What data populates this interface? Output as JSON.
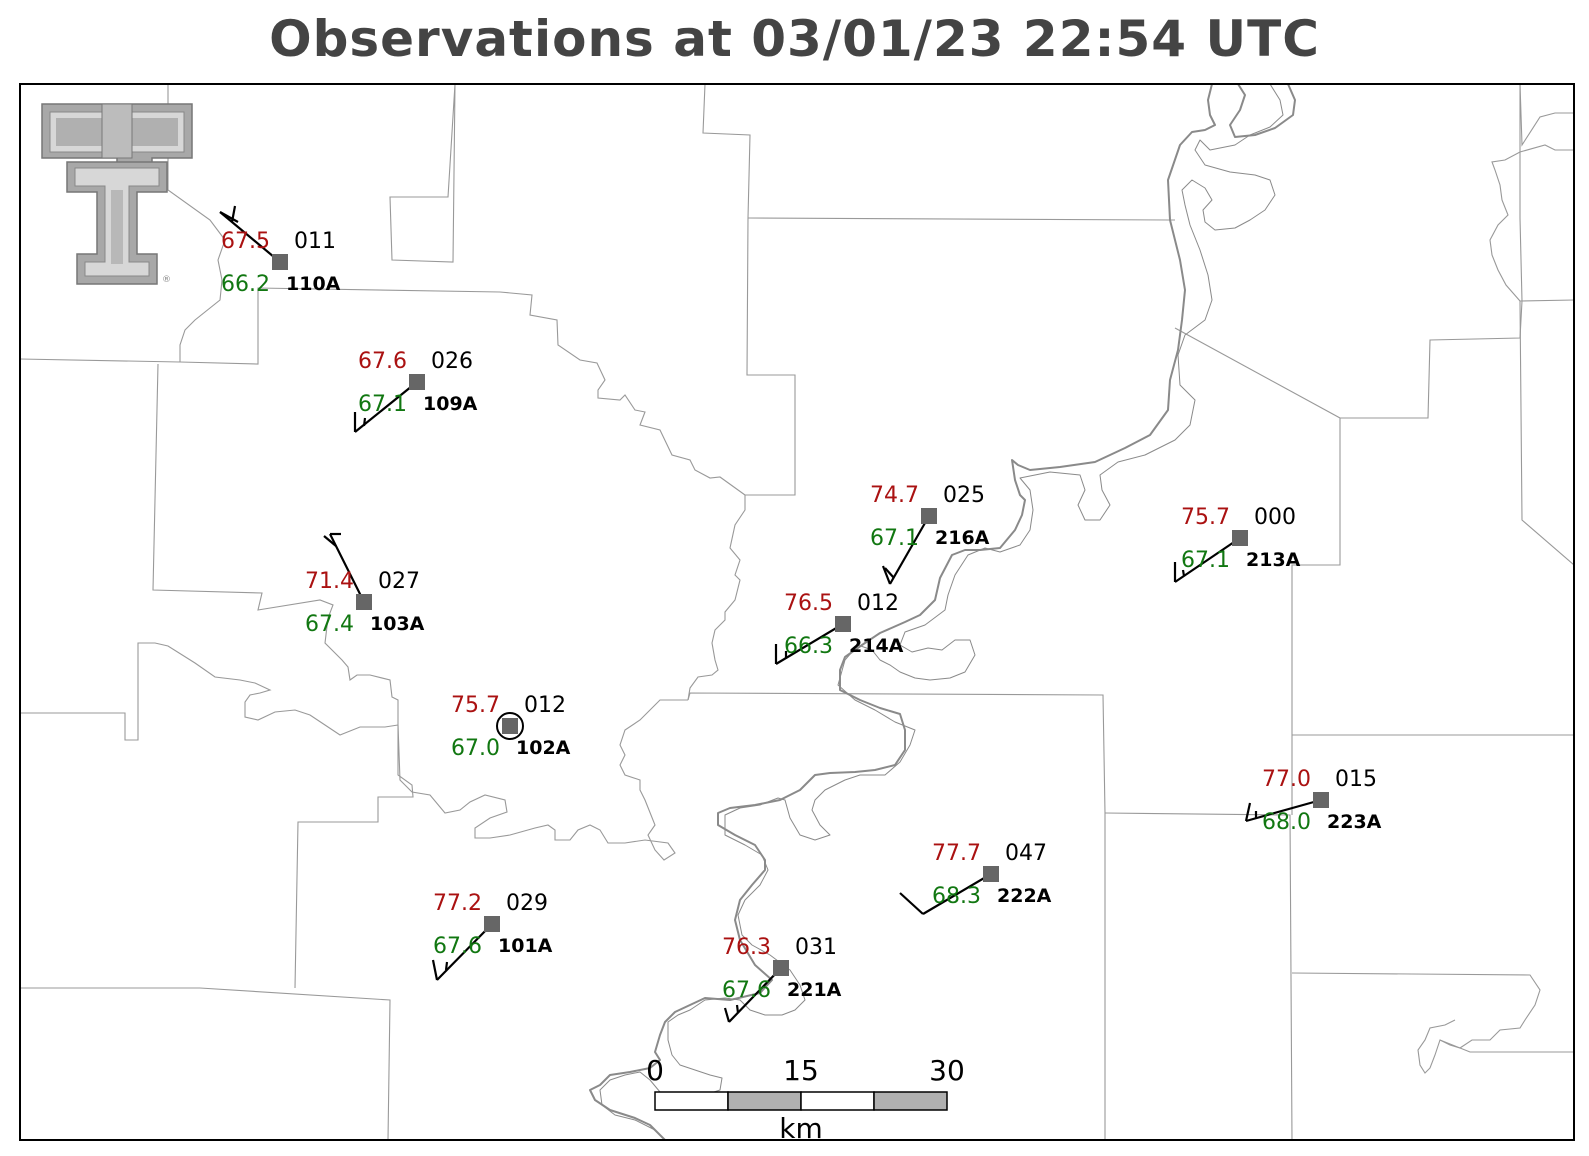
{
  "title": "Observations at 03/01/23 22:54 UTC",
  "logo": {
    "icon": "texas-tech-double-t-logo",
    "text": "®"
  },
  "colors": {
    "temperature": "#aa1111",
    "dewpoint": "#117711",
    "station": "#666666",
    "boundary": "#999999",
    "river": "#888888",
    "title": "#444444"
  },
  "stations": [
    {
      "id": "110A",
      "temp": "67.5",
      "dewpoint": "66.2",
      "wind_dir": "011",
      "highlight": false
    },
    {
      "id": "109A",
      "temp": "67.6",
      "dewpoint": "67.1",
      "wind_dir": "026",
      "highlight": false
    },
    {
      "id": "103A",
      "temp": "71.4",
      "dewpoint": "67.4",
      "wind_dir": "027",
      "highlight": false
    },
    {
      "id": "102A",
      "temp": "75.7",
      "dewpoint": "67.0",
      "wind_dir": "012",
      "highlight": true
    },
    {
      "id": "101A",
      "temp": "77.2",
      "dewpoint": "67.6",
      "wind_dir": "029",
      "highlight": false
    },
    {
      "id": "216A",
      "temp": "74.7",
      "dewpoint": "67.1",
      "wind_dir": "025",
      "highlight": false
    },
    {
      "id": "214A",
      "temp": "76.5",
      "dewpoint": "66.3",
      "wind_dir": "012",
      "highlight": false
    },
    {
      "id": "213A",
      "temp": "75.7",
      "dewpoint": "67.1",
      "wind_dir": "000",
      "highlight": false
    },
    {
      "id": "223A",
      "temp": "77.0",
      "dewpoint": "68.0",
      "wind_dir": "015",
      "highlight": false
    },
    {
      "id": "222A",
      "temp": "77.7",
      "dewpoint": "68.3",
      "wind_dir": "047",
      "highlight": false
    },
    {
      "id": "221A",
      "temp": "76.3",
      "dewpoint": "67.6",
      "wind_dir": "031",
      "highlight": false
    }
  ],
  "scale_bar": {
    "labels": [
      "0",
      "15",
      "30"
    ],
    "unit": "km"
  }
}
